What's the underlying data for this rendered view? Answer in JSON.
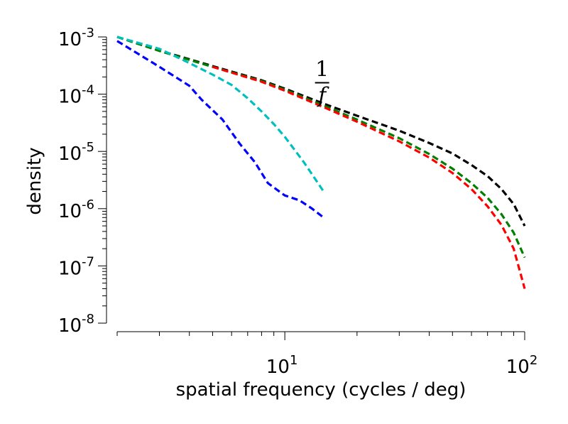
{
  "chart_data": {
    "type": "line",
    "title": "",
    "xlabel": "spatial frequency (cycles / deg)",
    "ylabel": "density",
    "x_scale": "log",
    "y_scale": "log",
    "xlim": [
      2,
      100
    ],
    "ylim": [
      1e-08,
      0.001
    ],
    "x_tick_labels": [
      {
        "value": 10,
        "base": "10",
        "exp": "1"
      },
      {
        "value": 100,
        "base": "10",
        "exp": "2"
      }
    ],
    "y_tick_labels": [
      {
        "value": 0.001,
        "base": "10",
        "exp": "-3"
      },
      {
        "value": 0.0001,
        "base": "10",
        "exp": "-4"
      },
      {
        "value": 1e-05,
        "base": "10",
        "exp": "-5"
      },
      {
        "value": 1e-06,
        "base": "10",
        "exp": "-6"
      },
      {
        "value": 1e-07,
        "base": "10",
        "exp": "-7"
      },
      {
        "value": 1e-08,
        "base": "10",
        "exp": "-8"
      }
    ],
    "annotation": {
      "numerator": "1",
      "denominator": "f",
      "x": 14.3,
      "y": 6e-05
    },
    "grid": false,
    "legend": "none",
    "series": [
      {
        "color": "#000000",
        "x": [
          2,
          3,
          5,
          8,
          10,
          15,
          20,
          30,
          40,
          50,
          60,
          70,
          80,
          90,
          100
        ],
        "y": [
          0.001,
          0.00058,
          0.00031,
          0.000175,
          0.000125,
          6.5e-05,
          4.2e-05,
          2.3e-05,
          1.4e-05,
          9.2e-06,
          5.8e-06,
          3.7e-06,
          2.2e-06,
          1.2e-06,
          5e-07
        ]
      },
      {
        "color": "#007f00",
        "x": [
          2,
          3,
          5,
          8,
          10,
          15,
          20,
          30,
          40,
          50,
          60,
          70,
          80,
          90,
          100
        ],
        "y": [
          0.001,
          0.00057,
          0.0003,
          0.00017,
          0.00012,
          6e-05,
          3.6e-05,
          1.7e-05,
          9e-06,
          5e-06,
          2.8e-06,
          1.55e-06,
          8e-07,
          3.8e-07,
          1.4e-07
        ]
      },
      {
        "color": "#ff0000",
        "x": [
          5,
          8,
          10,
          15,
          20,
          30,
          40,
          50,
          60,
          70,
          80,
          90,
          100
        ],
        "y": [
          0.0003,
          0.000165,
          0.000115,
          5.6e-05,
          3.3e-05,
          1.5e-05,
          7.8e-06,
          4.2e-06,
          2.2e-06,
          1.1e-06,
          5.2e-07,
          2e-07,
          4e-08
        ]
      },
      {
        "color": "#00bfbf",
        "x": [
          2,
          3,
          4,
          5,
          6,
          7,
          8,
          9,
          10,
          12,
          14.5
        ],
        "y": [
          0.001,
          0.00062,
          0.00035,
          0.00022,
          0.000145,
          8.5e-05,
          5e-05,
          3e-05,
          1.8e-05,
          6.5e-06,
          2e-06
        ]
      },
      {
        "color": "#0000ff",
        "x": [
          2,
          3,
          4,
          4.5,
          5.5,
          6.5,
          7.5,
          8.5,
          10,
          11.5,
          13,
          14.5
        ],
        "y": [
          0.00085,
          0.0003,
          0.00014,
          8e-05,
          3.6e-05,
          1.35e-05,
          6.5e-06,
          2.8e-06,
          1.7e-06,
          1.4e-06,
          1e-06,
          7e-07
        ]
      }
    ]
  }
}
